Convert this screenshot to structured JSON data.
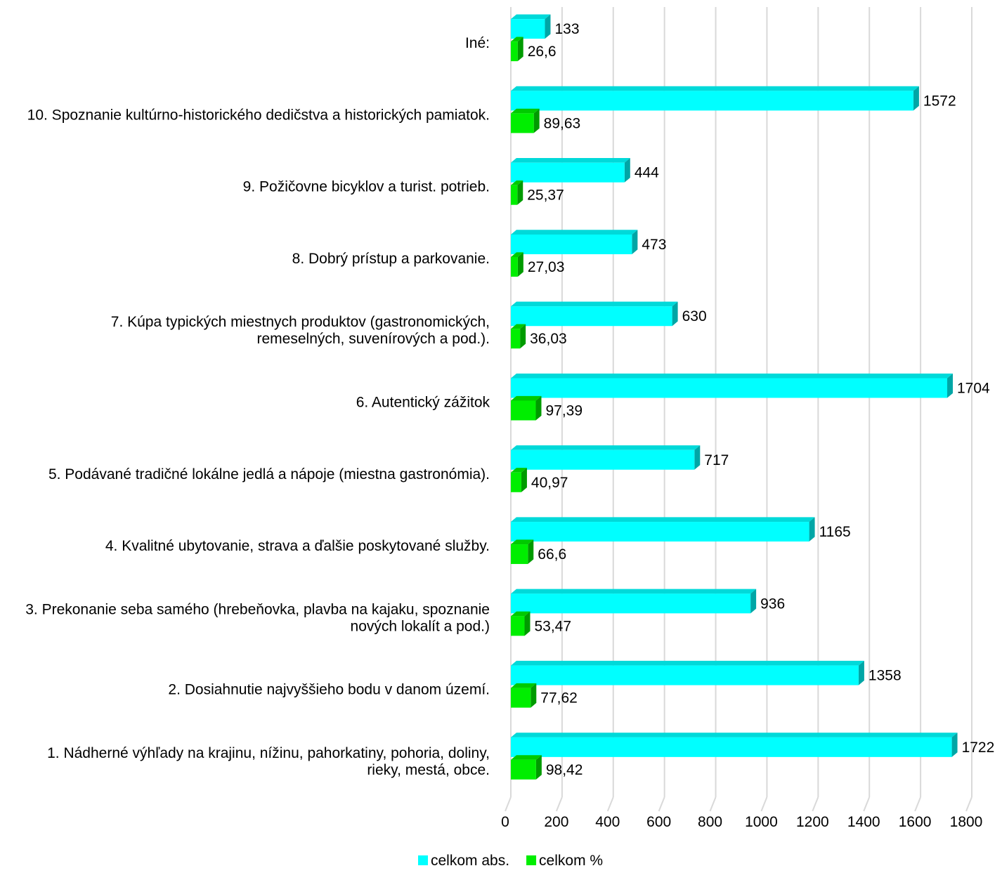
{
  "chart_data": {
    "type": "bar",
    "orientation": "horizontal",
    "categories": [
      [
        "Iné:"
      ],
      [
        "10. Spoznanie kultúrno-historického dedičstva a historických pamiatok."
      ],
      [
        "9. Požičovne bicyklov a turist. potrieb."
      ],
      [
        "8. Dobrý prístup a parkovanie."
      ],
      [
        "7. Kúpa typických miestnych produktov (gastronomických,",
        "remeselných, suvenírových a pod.)."
      ],
      [
        "6. Autentický zážitok"
      ],
      [
        "5. Podávané tradičné lokálne jedlá a nápoje (miestna gastronómia)."
      ],
      [
        "4. Kvalitné ubytovanie, strava a ďalšie poskytované služby."
      ],
      [
        "3. Prekonanie seba samého (hrebeňovka, plavba na kajaku, spoznanie",
        "nových lokalít a pod.)"
      ],
      [
        "2. Dosiahnutie najvyššieho bodu v danom území."
      ],
      [
        "1. Nádherné výhľady na krajinu, nížinu, pahorkatiny, pohoria, doliny,",
        "rieky, mestá, obce."
      ]
    ],
    "series": [
      {
        "name": "celkom abs.",
        "color": "#00FFFF",
        "values": [
          133,
          1572,
          444,
          473,
          630,
          1704,
          717,
          1165,
          936,
          1358,
          1722
        ],
        "labels": [
          "133",
          "1572",
          "444",
          "473",
          "630",
          "1704",
          "717",
          "1165",
          "936",
          "1358",
          "1722"
        ]
      },
      {
        "name": "celkom %",
        "color": "#00EE00",
        "values": [
          26.6,
          89.63,
          25.37,
          27.03,
          36.03,
          97.39,
          40.97,
          66.6,
          53.47,
          77.62,
          98.42
        ],
        "labels": [
          "26,6",
          "89,63",
          "25,37",
          "27,03",
          "36,03",
          "97,39",
          "40,97",
          "66,6",
          "53,47",
          "77,62",
          "98,42"
        ]
      }
    ],
    "x_ticks": [
      "0",
      "200",
      "400",
      "600",
      "800",
      "1000",
      "1200",
      "1400",
      "1600",
      "1800"
    ],
    "xlim": [
      0,
      1800
    ],
    "grid": true,
    "legend": "bottom-center"
  }
}
